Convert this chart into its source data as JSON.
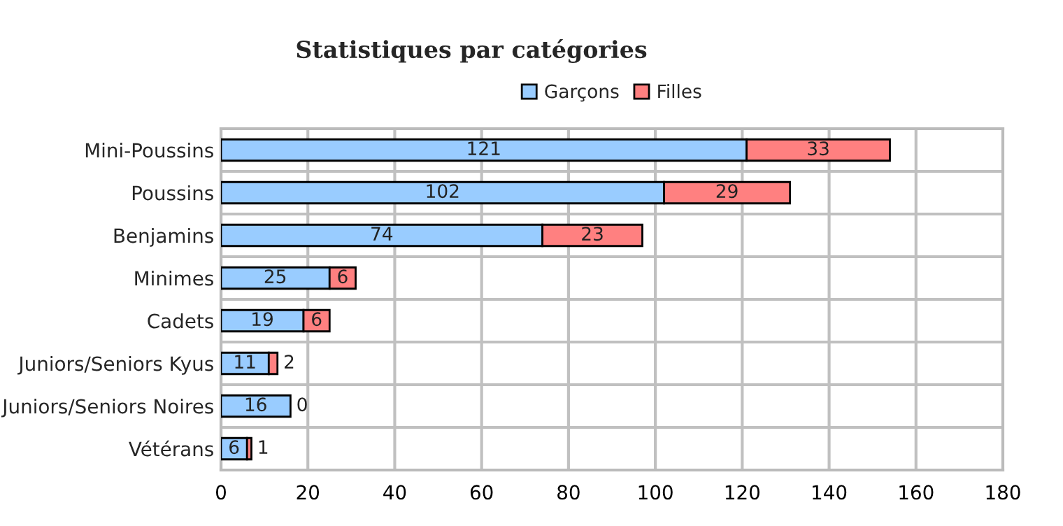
{
  "chart_data": {
    "type": "bar",
    "orientation": "horizontal",
    "stacked": true,
    "title": "Statistiques par catégories",
    "categories": [
      "Mini-Poussins",
      "Poussins",
      "Benjamins",
      "Minimes",
      "Cadets",
      "Juniors/Seniors Kyus",
      "Juniors/Seniors Noires",
      "Vétérans"
    ],
    "series": [
      {
        "name": "Garçons",
        "color": "#99ccff",
        "values": [
          121,
          102,
          74,
          25,
          19,
          11,
          16,
          6
        ]
      },
      {
        "name": "Filles",
        "color": "#ff8080",
        "values": [
          33,
          29,
          23,
          6,
          6,
          2,
          0,
          1
        ]
      }
    ],
    "xlim": [
      0,
      180
    ],
    "xticks": [
      0,
      20,
      40,
      60,
      80,
      100,
      120,
      140,
      160,
      180
    ],
    "grid": true,
    "legend": "top",
    "data_labels": true
  }
}
